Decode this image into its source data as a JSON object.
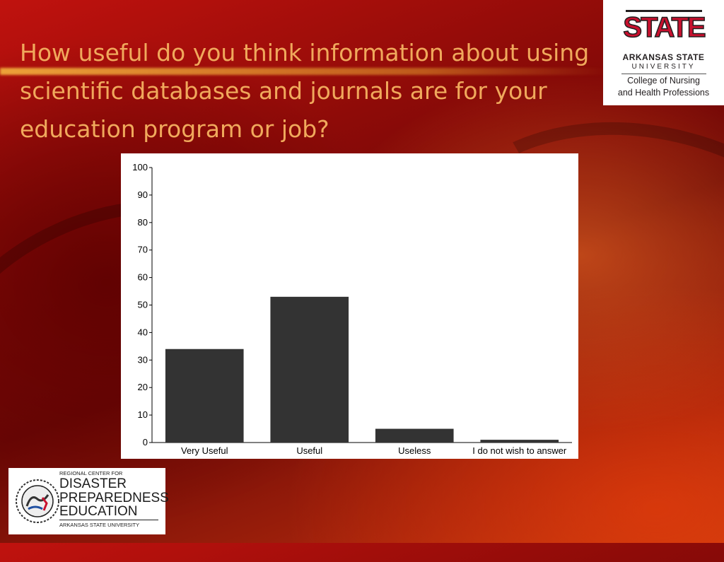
{
  "slide": {
    "title": "How useful do you think information about using scientific databases and journals are for your education program or job?"
  },
  "logos": {
    "asu": {
      "mark": "STATE",
      "line1": "ARKANSAS STATE",
      "line2": "UNIVERSITY",
      "line3": "College of Nursing",
      "line4": "and Health Professions",
      "colors": {
        "red": "#c8102e",
        "black": "#231f20"
      }
    },
    "rcdpe": {
      "line1": "REGIONAL CENTER FOR",
      "line2": "DISASTER",
      "line3": "PREPAREDNESS",
      "line4": "EDUCATION",
      "line5": "ARKANSAS STATE UNIVERSITY",
      "emblem_icon": "disaster-preparedness-emblem-icon"
    }
  },
  "chart_data": {
    "type": "bar",
    "categories": [
      "Very Useful",
      "Useful",
      "Useless",
      "I do not wish to answer"
    ],
    "values": [
      34,
      53,
      5,
      1
    ],
    "title": "",
    "xlabel": "",
    "ylabel": "",
    "ylim": [
      0,
      100
    ],
    "yticks": [
      0,
      10,
      20,
      30,
      40,
      50,
      60,
      70,
      80,
      90,
      100
    ],
    "bar_color": "#333333",
    "grid": false,
    "legend": "none"
  }
}
